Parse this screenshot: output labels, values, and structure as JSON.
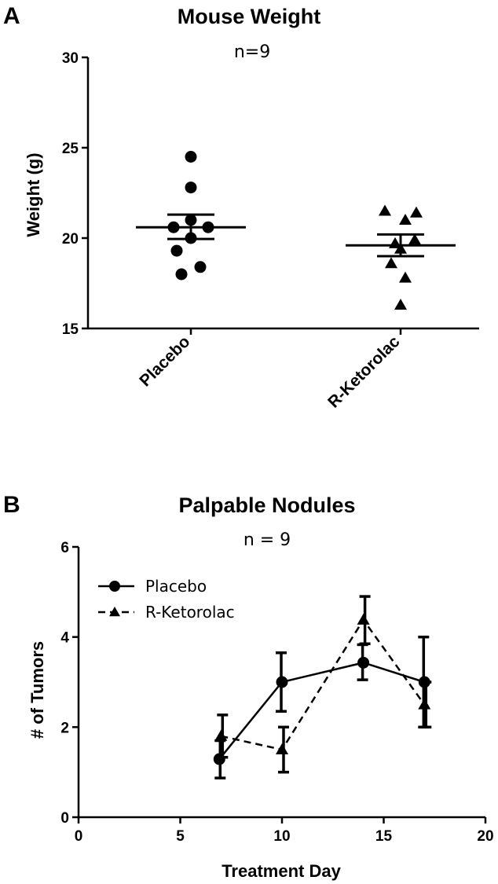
{
  "chart_data": [
    {
      "panel_label": "A",
      "type": "scatter",
      "title": "Mouse Weight",
      "subtitle": "n=9",
      "ylabel": "Weight (g)",
      "ylim": [
        15,
        30
      ],
      "yticks": [
        15,
        20,
        25,
        30
      ],
      "ytick_labels": [
        "15",
        "20",
        "25",
        "30"
      ],
      "categories": [
        "Placebo",
        "R-Ketorolac"
      ],
      "series": [
        {
          "marker": "circle",
          "points": [
            24.5,
            22.8,
            21.0,
            20.6,
            20.6,
            20.0,
            19.3,
            18.4,
            18.0
          ],
          "mean": 20.6,
          "sem": [
            19.95,
            21.3
          ]
        },
        {
          "marker": "triangle",
          "points": [
            21.5,
            21.4,
            21.0,
            19.9,
            19.7,
            19.4,
            18.6,
            17.8,
            16.3
          ],
          "mean": 19.6,
          "sem": [
            19.0,
            20.2
          ]
        }
      ]
    },
    {
      "panel_label": "B",
      "type": "line",
      "title": "Palpable Nodules",
      "subtitle": "n = 9",
      "xlabel": "Treatment Day",
      "ylabel": "# of Tumors",
      "xlim": [
        0,
        20
      ],
      "ylim": [
        0,
        6
      ],
      "xticks": [
        0,
        5,
        10,
        15,
        20
      ],
      "xtick_labels": [
        "0",
        "5",
        "10",
        "15",
        "20"
      ],
      "yticks": [
        0,
        2,
        4,
        6
      ],
      "ytick_labels": [
        "0",
        "2",
        "4",
        "6"
      ],
      "legend_position": "top-left",
      "series": [
        {
          "name": "Placebo",
          "marker": "circle",
          "line_style": "solid",
          "x": [
            7,
            10,
            14,
            17
          ],
          "y": [
            1.29,
            3.0,
            3.43,
            3.0
          ],
          "err_low": [
            0.87,
            2.35,
            3.05,
            2.0
          ],
          "err_high": [
            1.7,
            3.65,
            3.83,
            4.0
          ]
        },
        {
          "name": "R-Ketorolac",
          "marker": "triangle",
          "line_style": "dashed",
          "x": [
            7,
            10,
            14,
            17
          ],
          "y": [
            1.8,
            1.5,
            4.38,
            2.5
          ],
          "err_low": [
            1.33,
            1.0,
            3.85,
            2.0
          ],
          "err_high": [
            2.27,
            2.0,
            4.9,
            3.0
          ]
        }
      ]
    }
  ]
}
